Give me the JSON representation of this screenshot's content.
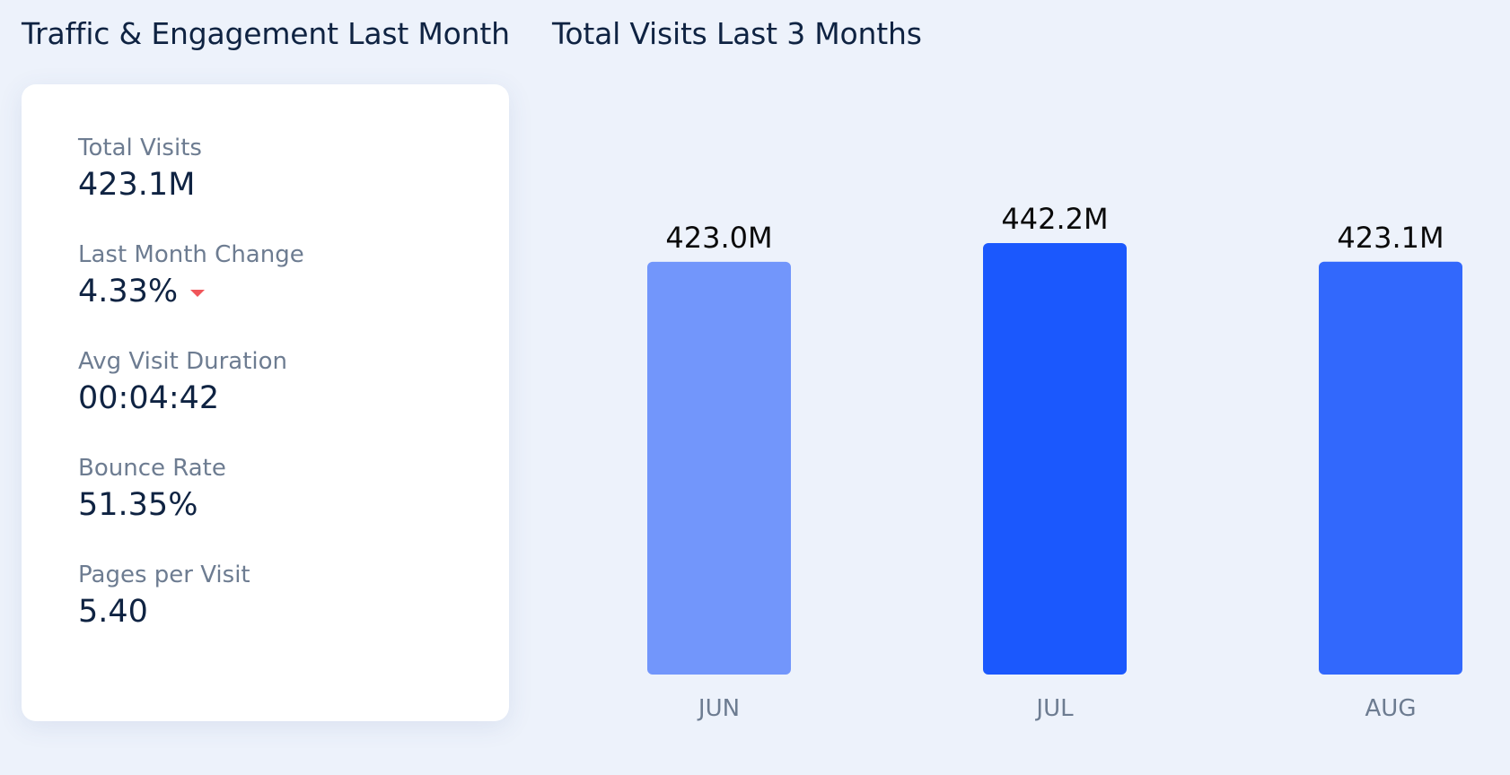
{
  "left_panel": {
    "title": "Traffic & Engagement Last Month",
    "metrics": [
      {
        "label": "Total Visits",
        "value": "423.1M"
      },
      {
        "label": "Last Month Change",
        "value": "4.33%",
        "trend": "down",
        "trend_color": "#f0555a"
      },
      {
        "label": "Avg Visit Duration",
        "value": "00:04:42"
      },
      {
        "label": "Bounce Rate",
        "value": "51.35%"
      },
      {
        "label": "Pages per Visit",
        "value": "5.40"
      }
    ]
  },
  "right_panel": {
    "title": "Total Visits Last 3 Months"
  },
  "chart_data": {
    "type": "bar",
    "title": "Total Visits Last 3 Months",
    "categories": [
      "JUN",
      "JUL",
      "AUG"
    ],
    "values": [
      423.0,
      442.2,
      423.1
    ],
    "value_labels": [
      "423.0M",
      "442.2M",
      "423.1M"
    ],
    "unit": "M",
    "bar_colors": [
      "#7296fb",
      "#1b58fd",
      "#3268fc"
    ],
    "grid": false,
    "axes_visible": false
  }
}
